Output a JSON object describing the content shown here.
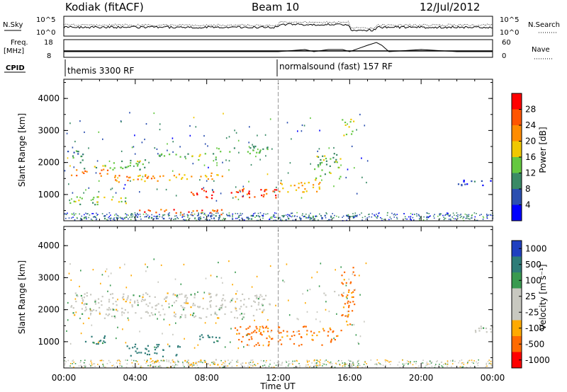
{
  "header": {
    "station": "Kodiak (fitACF)",
    "beam": "Beam 10",
    "date": "12/Jul/2012"
  },
  "top_panel": {
    "left_label": "N.Sky",
    "right_label": "N.Search",
    "left_ticks": [
      "10^5",
      "10^0"
    ],
    "right_ticks": [
      "10^5",
      "10^0"
    ]
  },
  "freq_panel": {
    "left_label_1": "Freq.",
    "left_label_2": "[MHz]",
    "left_ticks": [
      "18",
      "8"
    ],
    "right_label": "Nave",
    "right_ticks": [
      "60",
      "0"
    ]
  },
  "cpid": {
    "label": "CPID",
    "segments": [
      {
        "text": "themis 3300 RF"
      },
      {
        "text": "normalsound (fast) 157 RF"
      }
    ]
  },
  "colors": {
    "power": [
      "#0000ff",
      "#2b4fb0",
      "#3a8a66",
      "#64c840",
      "#f0c800",
      "#ff8c00",
      "#ff5500",
      "#ff0000"
    ],
    "velocity": [
      "#2040c0",
      "#2e7c78",
      "#3a9a50",
      "#c8c8c0",
      "#c8c8c0",
      "#ffaa00",
      "#ff6a00",
      "#ff0000"
    ],
    "ground": "#c8c8c0"
  },
  "chart_data": [
    {
      "type": "heatmap",
      "name": "power",
      "ylabel": "Slant Range [km]",
      "xlabel": "",
      "x_ticks": [
        "00:00",
        "04:00",
        "08:00",
        "12:00",
        "16:00",
        "20:00",
        "00:00"
      ],
      "xlim": [
        0,
        24
      ],
      "y_ticks": [
        "1000",
        "2000",
        "3000",
        "4000"
      ],
      "ylim": [
        180,
        4600
      ],
      "colorbar_label": "Power [dB]",
      "colorbar_ticks": [
        "4",
        "8",
        "12",
        "16",
        "20",
        "24",
        "28"
      ],
      "colorbar_range": [
        0,
        32
      ],
      "regions": [
        {
          "t": [
            0.2,
            1.2
          ],
          "r": [
            2000,
            2400
          ],
          "level": 10
        },
        {
          "t": [
            1.0,
            4.5
          ],
          "r": [
            1800,
            2100
          ],
          "level": 14
        },
        {
          "t": [
            4.5,
            8.5
          ],
          "r": [
            2100,
            2300
          ],
          "level": 13
        },
        {
          "t": [
            8.5,
            11.5
          ],
          "r": [
            2300,
            2550
          ],
          "level": 12
        },
        {
          "t": [
            0.3,
            2.5
          ],
          "r": [
            1600,
            1850
          ],
          "level": 24
        },
        {
          "t": [
            2.5,
            6.0
          ],
          "r": [
            1400,
            1650
          ],
          "level": 22
        },
        {
          "t": [
            6.0,
            9.0
          ],
          "r": [
            1500,
            1700
          ],
          "level": 20
        },
        {
          "t": [
            7.0,
            8.5
          ],
          "r": [
            900,
            1200
          ],
          "level": 28
        },
        {
          "t": [
            9.2,
            12.0
          ],
          "r": [
            900,
            1300
          ],
          "level": 27
        },
        {
          "t": [
            12.0,
            14.5
          ],
          "r": [
            1100,
            1500
          ],
          "level": 20
        },
        {
          "t": [
            4.0,
            9.0
          ],
          "r": [
            380,
            560
          ],
          "level": 26
        },
        {
          "t": [
            0.2,
            3.5
          ],
          "r": [
            700,
            950
          ],
          "level": 14
        },
        {
          "t": [
            14.0,
            15.5
          ],
          "r": [
            1500,
            2300
          ],
          "level": 14
        },
        {
          "t": [
            15.5,
            16.2
          ],
          "r": [
            2800,
            3400
          ],
          "level": 16
        },
        {
          "t": [
            22.0,
            24.0
          ],
          "r": [
            1300,
            1500
          ],
          "level": 6
        },
        {
          "t": [
            0.5,
            16.5
          ],
          "r": [
            250,
            380
          ],
          "level": 8
        }
      ]
    },
    {
      "type": "heatmap",
      "name": "velocity",
      "ylabel": "Slant Range [km]",
      "xlabel": "Time UT",
      "x_ticks": [
        "00:00",
        "04:00",
        "08:00",
        "12:00",
        "16:00",
        "20:00",
        "00:00"
      ],
      "xlim": [
        0,
        24
      ],
      "y_ticks": [
        "1000",
        "2000",
        "3000",
        "4000"
      ],
      "ylim": [
        180,
        4600
      ],
      "colorbar_label": "Velocity [m s⁻¹]",
      "colorbar_ticks": [
        "1000",
        "500",
        "100",
        "25",
        "-25",
        "-100",
        "-500",
        "-1000"
      ],
      "regions": [
        {
          "t": [
            0.3,
            11.5
          ],
          "r": [
            1750,
            2550
          ],
          "vel": 0
        },
        {
          "t": [
            14.5,
            15.8
          ],
          "r": [
            2400,
            2600
          ],
          "vel": 0
        },
        {
          "t": [
            1.0,
            2.5
          ],
          "r": [
            950,
            1250
          ],
          "vel": 300
        },
        {
          "t": [
            3.5,
            6.5
          ],
          "r": [
            550,
            950
          ],
          "vel": 400
        },
        {
          "t": [
            7.5,
            8.8
          ],
          "r": [
            1000,
            1300
          ],
          "vel": 400
        },
        {
          "t": [
            9.5,
            15.5
          ],
          "r": [
            900,
            1500
          ],
          "vel": -300
        },
        {
          "t": [
            15.5,
            16.3
          ],
          "r": [
            1500,
            3400
          ],
          "vel": -300
        },
        {
          "t": [
            4.5,
            9.0
          ],
          "r": [
            300,
            500
          ],
          "vel": -100
        },
        {
          "t": [
            22.0,
            24.0
          ],
          "r": [
            1300,
            1500
          ],
          "vel": 0
        }
      ]
    }
  ]
}
